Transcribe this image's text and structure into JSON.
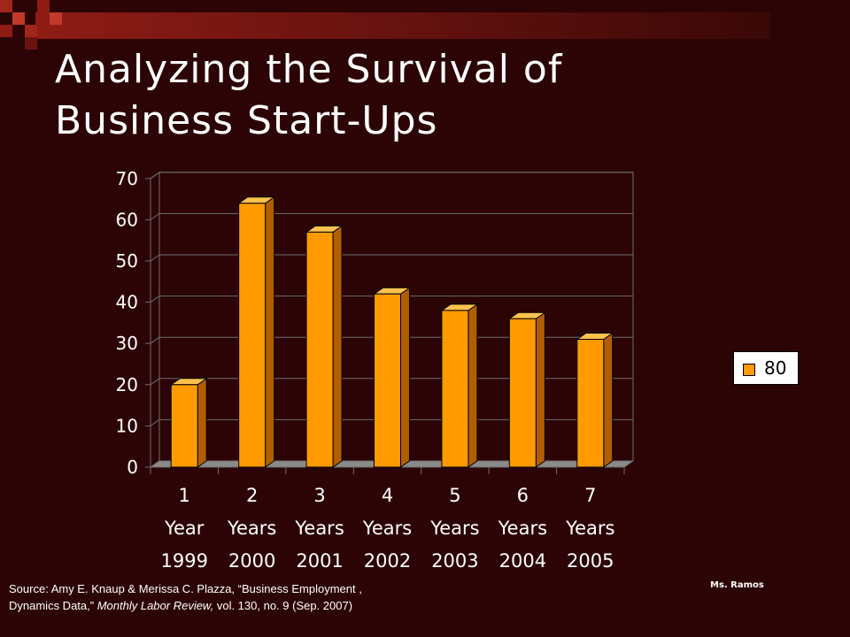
{
  "slide": {
    "title_line1": "Analyzing the Survival of",
    "title_line2": "Business Start-Ups",
    "source_line1": "Source: Amy E. Knaup & Merissa C. Plazza, “Business Employment ,",
    "source_line2_plain": "Dynamics Data,”",
    "source_line2_italic": "Monthly Labor Review,",
    "source_line2_rest": "vol. 130, no. 9 (Sep. 2007)",
    "author": "Ms. Ramos"
  },
  "colors": {
    "background": "#2c0406",
    "bar_front": "#ff9a00",
    "bar_side": "#b25e00",
    "bar_top": "#ffc24d",
    "text": "#ffffff"
  },
  "chart_data": {
    "type": "bar",
    "categories": [
      [
        "1",
        "Year",
        "1999"
      ],
      [
        "2",
        "Years",
        "2000"
      ],
      [
        "3",
        "Years",
        "2001"
      ],
      [
        "4",
        "Years",
        "2002"
      ],
      [
        "5",
        "Years",
        "2003"
      ],
      [
        "6",
        "Years",
        "2004"
      ],
      [
        "7",
        "Years",
        "2005"
      ]
    ],
    "series": [
      {
        "name": "80",
        "values": [
          20,
          64,
          57,
          42,
          38,
          36,
          31
        ]
      }
    ],
    "y_ticks": [
      0,
      10,
      20,
      30,
      40,
      50,
      60,
      70
    ],
    "ylim": [
      0,
      70
    ],
    "grid": true,
    "legend_position": "right",
    "style": "3d"
  }
}
